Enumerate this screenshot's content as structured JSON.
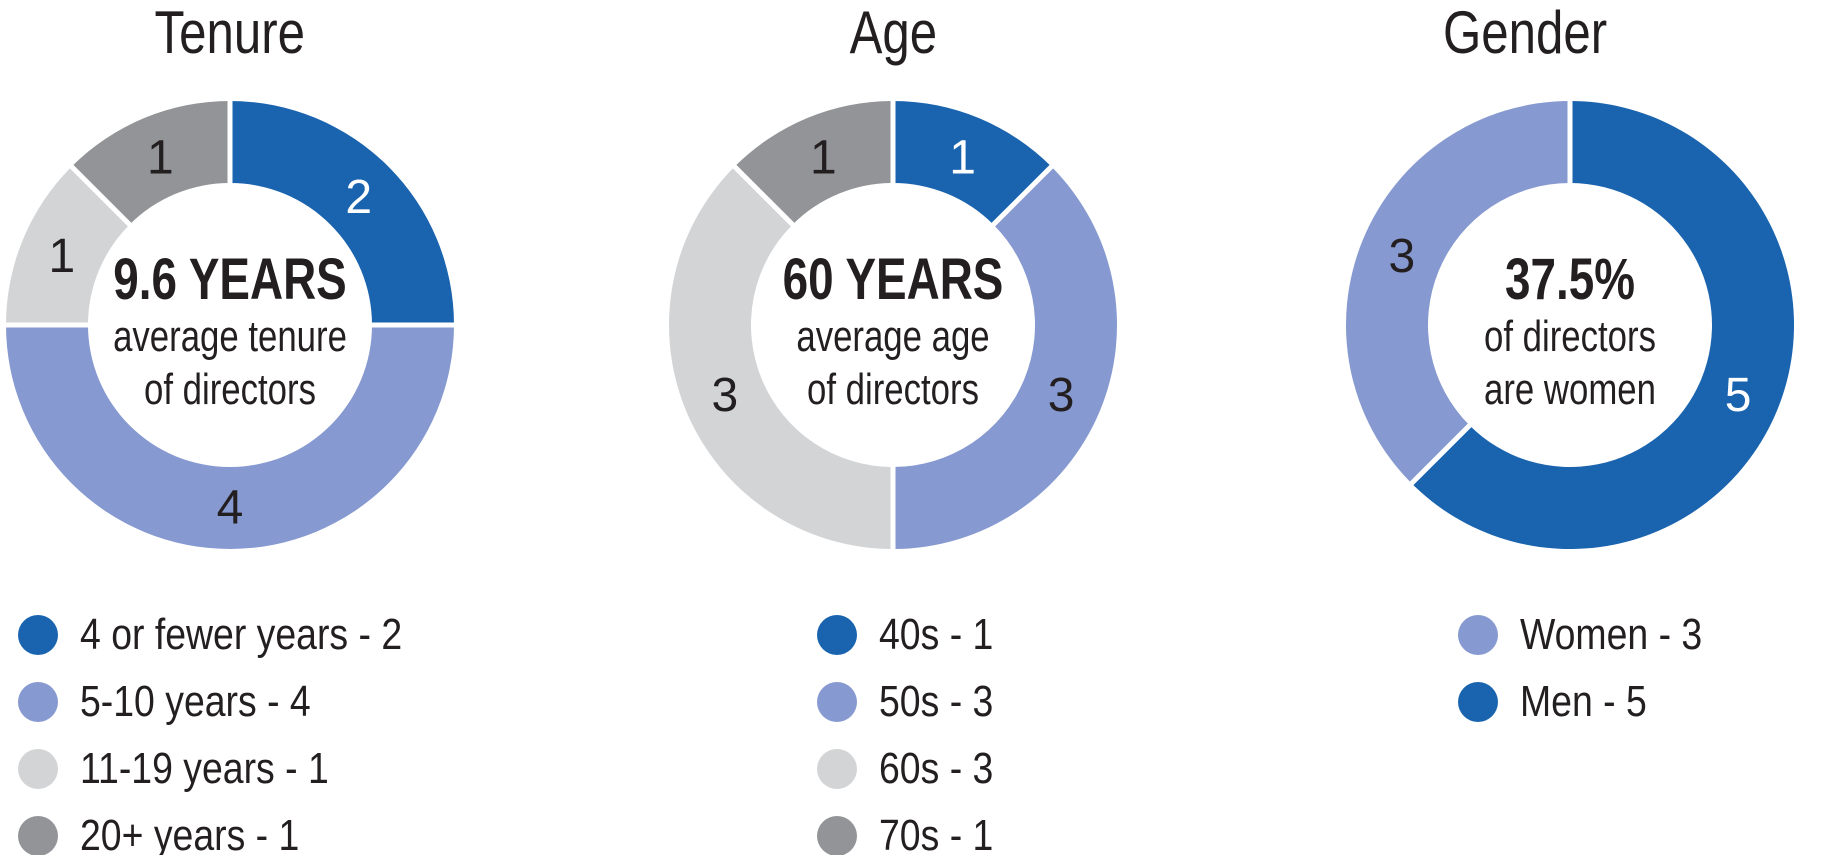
{
  "colors": {
    "blue": "#1a64af",
    "periwinkle": "#8699d0",
    "light_gray": "#d2d4d6",
    "dark_gray": "#929497",
    "ink": "#231f20",
    "background": "#ffffff"
  },
  "chart_data": [
    {
      "type": "pie",
      "variant": "donut",
      "title": "Tenure",
      "total": 8,
      "start_angle_deg": 0,
      "direction": "clockwise",
      "center": {
        "headline": "9.6 YEARS",
        "lines": [
          "average tenure",
          "of directors"
        ]
      },
      "segments": [
        {
          "label": "4 or fewer years",
          "value": 2,
          "color": "#1a64af",
          "value_label_color": "#ffffff"
        },
        {
          "label": "5-10 years",
          "value": 4,
          "color": "#8699d0",
          "value_label_color": "#231f20"
        },
        {
          "label": "11-19 years",
          "value": 1,
          "color": "#d2d4d6",
          "value_label_color": "#231f20"
        },
        {
          "label": "20+ years",
          "value": 1,
          "color": "#929497",
          "value_label_color": "#231f20"
        }
      ],
      "legend": [
        {
          "text": "4 or fewer years - 2",
          "color": "#1a64af"
        },
        {
          "text": "5-10 years - 4",
          "color": "#8699d0"
        },
        {
          "text": "11-19 years - 1",
          "color": "#d2d4d6"
        },
        {
          "text": "20+ years - 1",
          "color": "#929497"
        }
      ]
    },
    {
      "type": "pie",
      "variant": "donut",
      "title": "Age",
      "total": 8,
      "start_angle_deg": 0,
      "direction": "clockwise",
      "center": {
        "headline": "60 YEARS",
        "lines": [
          "average age",
          "of directors"
        ]
      },
      "segments": [
        {
          "label": "40s",
          "value": 1,
          "color": "#1a64af",
          "value_label_color": "#ffffff"
        },
        {
          "label": "50s",
          "value": 3,
          "color": "#8699d0",
          "value_label_color": "#231f20"
        },
        {
          "label": "60s",
          "value": 3,
          "color": "#d2d4d6",
          "value_label_color": "#231f20"
        },
        {
          "label": "70s",
          "value": 1,
          "color": "#929497",
          "value_label_color": "#231f20"
        }
      ],
      "legend": [
        {
          "text": "40s - 1",
          "color": "#1a64af"
        },
        {
          "text": "50s - 3",
          "color": "#8699d0"
        },
        {
          "text": "60s - 3",
          "color": "#d2d4d6"
        },
        {
          "text": "70s - 1",
          "color": "#929497"
        }
      ]
    },
    {
      "type": "pie",
      "variant": "donut",
      "title": "Gender",
      "total": 8,
      "start_angle_deg": 0,
      "direction": "clockwise",
      "center": {
        "headline": "37.5%",
        "lines": [
          "of directors",
          "are women"
        ]
      },
      "segments": [
        {
          "label": "Men",
          "value": 5,
          "color": "#1a64af",
          "value_label_color": "#ffffff"
        },
        {
          "label": "Women",
          "value": 3,
          "color": "#8699d0",
          "value_label_color": "#231f20"
        }
      ],
      "legend": [
        {
          "text": "Women - 3",
          "color": "#8699d0"
        },
        {
          "text": "Men - 5",
          "color": "#1a64af"
        }
      ]
    }
  ]
}
